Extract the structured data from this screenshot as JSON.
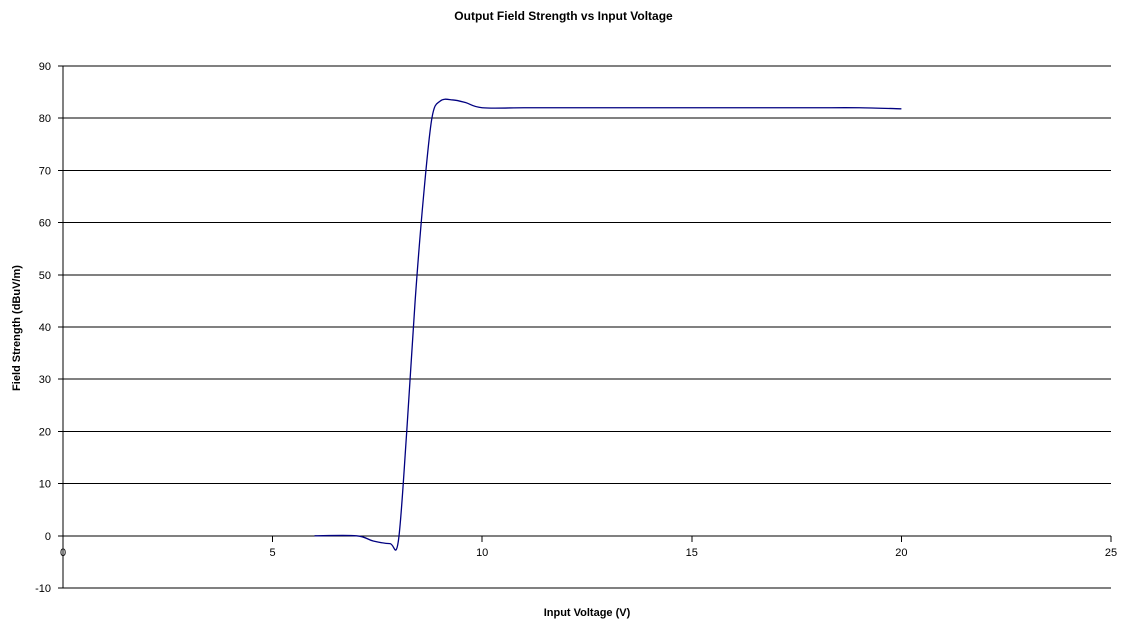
{
  "chart_data": {
    "type": "line",
    "title": "Output Field Strength vs Input Voltage",
    "xlabel": "Input Voltage (V)",
    "ylabel": "Field Strength (dBuV/m)",
    "xlim": [
      0,
      25
    ],
    "ylim": [
      -10,
      90
    ],
    "xticks": [
      0,
      5,
      10,
      15,
      20,
      25
    ],
    "yticks": [
      -10,
      0,
      10,
      20,
      30,
      40,
      50,
      60,
      70,
      80,
      90
    ],
    "grid": "horizontal",
    "legend": "none",
    "series": [
      {
        "color": "#000080",
        "x": [
          6,
          7,
          7.4,
          7.8,
          8,
          8.2,
          8.4,
          8.6,
          8.8,
          9,
          9.3,
          9.6,
          10,
          11,
          12,
          13,
          14,
          15,
          16,
          17,
          18,
          19,
          20
        ],
        "y": [
          0,
          0,
          -1,
          -1.5,
          -1,
          20,
          45,
          65,
          80,
          83.3,
          83.5,
          83,
          82,
          82,
          82,
          82,
          82,
          82,
          82,
          82,
          82,
          82,
          81.8
        ]
      }
    ]
  }
}
